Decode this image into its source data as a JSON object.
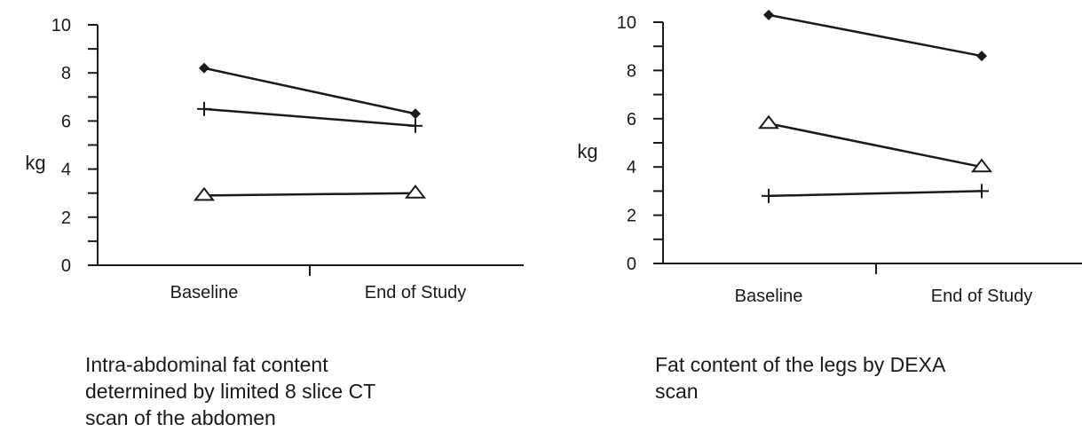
{
  "chart_data": [
    {
      "type": "line",
      "title": "",
      "caption": "Intra-abdominal fat content\ndetermined by limited 8 slice CT\nscan of the abdomen",
      "ylabel": "kg",
      "xlabel": "",
      "categories": [
        "Baseline",
        "End of Study"
      ],
      "ylim": [
        0,
        10
      ],
      "yticks": [
        "0",
        "2",
        "4",
        "6",
        "8",
        "10"
      ],
      "grid": false,
      "series": [
        {
          "marker": "diamond",
          "values": [
            8.2,
            6.3
          ]
        },
        {
          "marker": "plus",
          "values": [
            6.5,
            5.8
          ]
        },
        {
          "marker": "triangle",
          "values": [
            2.9,
            3.0
          ]
        }
      ]
    },
    {
      "type": "line",
      "title": "",
      "caption": "Fat content of the legs by DEXA\nscan",
      "ylabel": "kg",
      "xlabel": "",
      "categories": [
        "Baseline",
        "End of Study"
      ],
      "ylim": [
        0,
        10
      ],
      "yticks": [
        "0",
        "2",
        "4",
        "6",
        "8",
        "10"
      ],
      "grid": false,
      "series": [
        {
          "marker": "diamond",
          "values": [
            10.3,
            8.6
          ]
        },
        {
          "marker": "triangle",
          "values": [
            5.8,
            4.0
          ]
        },
        {
          "marker": "plus",
          "values": [
            2.8,
            3.0
          ]
        }
      ]
    }
  ]
}
